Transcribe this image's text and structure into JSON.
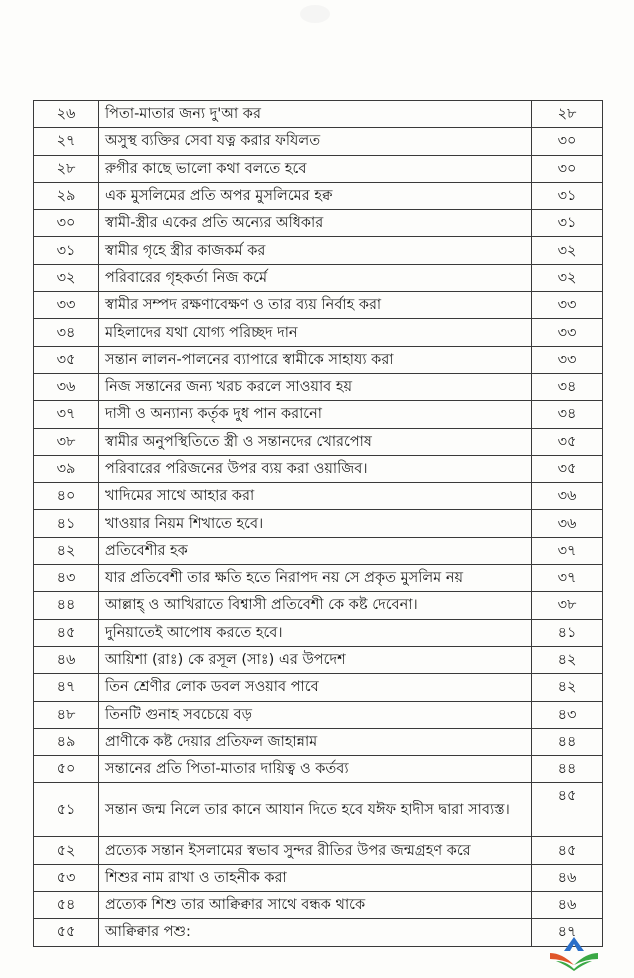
{
  "toc": {
    "rows": [
      {
        "no": "২৬",
        "title": "পিতা-মাতার জন্য দু'আ কর",
        "page": "২৮"
      },
      {
        "no": "২৭",
        "title": "অসুস্থ ব্যক্তির সেবা যত্ন করার ফযিলত",
        "page": "৩০"
      },
      {
        "no": "২৮",
        "title": "রুগীর কাছে ভালো কথা বলতে হবে",
        "page": "৩০"
      },
      {
        "no": "২৯",
        "title": "এক মুসলিমের প্রতি অপর মুসলিমের হক্ব",
        "page": "৩১"
      },
      {
        "no": "৩০",
        "title": "স্বামী-স্ত্রীর একের প্রতি অন্যের অধিকার",
        "page": "৩১"
      },
      {
        "no": "৩১",
        "title": "স্বামীর গৃহে স্ত্রীর কাজকর্ম কর",
        "page": "৩২"
      },
      {
        "no": "৩২",
        "title": "পরিবারের গৃহকর্তা নিজ কর্মে",
        "page": "৩২"
      },
      {
        "no": "৩৩",
        "title": "স্বামীর সম্পদ রক্ষণাবেক্ষণ ও তার ব্যয় নির্বাহ করা",
        "page": "৩৩"
      },
      {
        "no": "৩৪",
        "title": "মহিলাদের যথা যোগ্য পরিচ্ছদ দান",
        "page": "৩৩"
      },
      {
        "no": "৩৫",
        "title": "সন্তান লালন-পালনের ব্যাপারে স্বামীকে সাহায্য করা",
        "page": "৩৩"
      },
      {
        "no": "৩৬",
        "title": "নিজ সন্তানের জন্য খরচ করলে সাওয়াব হয়",
        "page": "৩৪"
      },
      {
        "no": "৩৭",
        "title": "দাসী ও অন্যান্য কর্তৃক দুধ পান করানো",
        "page": "৩৪"
      },
      {
        "no": "৩৮",
        "title": "স্বামীর অনুপস্থিতিতে স্ত্রী ও সন্তানদের খোরপোষ",
        "page": "৩৫"
      },
      {
        "no": "৩৯",
        "title": "পরিবারের পরিজনের উপর ব্যয় করা ওয়াজিব।",
        "page": "৩৫"
      },
      {
        "no": "৪০",
        "title": "খাদিমের সাথে আহার করা",
        "page": "৩৬"
      },
      {
        "no": "৪১",
        "title": "খাওয়ার নিয়ম শিখাতে হবে।",
        "page": "৩৬"
      },
      {
        "no": "৪২",
        "title": "প্রতিবেশীর হক",
        "page": "৩৭"
      },
      {
        "no": "৪৩",
        "title": "যার প্রতিবেশী তার ক্ষতি হতে নিরাপদ নয় সে প্রকৃত মুসলিম নয়",
        "page": "৩৭"
      },
      {
        "no": "৪৪",
        "title": "আল্লাহ্ ও আখিরাতে বিশ্বাসী প্রতিবেশী কে কষ্ট দেবেনা।",
        "page": "৩৮"
      },
      {
        "no": "৪৫",
        "title": "দুনিয়াতেই আপোষ করতে হবে।",
        "page": "৪১"
      },
      {
        "no": "৪৬",
        "title": "আয়িশা (রাঃ) কে রসূল (সাঃ) এর উপদেশ",
        "page": "৪২"
      },
      {
        "no": "৪৭",
        "title": "তিন শ্রেণীর লোক ডবল সওয়াব পাবে",
        "page": "৪২"
      },
      {
        "no": "৪৮",
        "title": "তিনটি গুনাহ সবচেয়ে বড়",
        "page": "৪৩"
      },
      {
        "no": "৪৯",
        "title": "প্রাণীকে কষ্ট দেয়ার প্রতিফল জাহান্নাম",
        "page": "৪৪"
      },
      {
        "no": "৫০",
        "title": "সন্তানের প্রতি পিতা-মাতার দায়িত্ব ও কর্তব্য",
        "page": "৪৪"
      },
      {
        "no": "৫১",
        "title": "সন্তান জন্ম নিলে তার কানে আযান দিতে হবে যঈফ হাদীস দ্বারা সাব্যস্ত।",
        "page": "৪৫"
      },
      {
        "no": "৫২",
        "title": "প্রত্যেক সন্তান ইসলামের স্বভাব সুন্দর রীতির উপর জন্মগ্রহণ করে",
        "page": "৪৫"
      },
      {
        "no": "৫৩",
        "title": "শিশুর নাম রাখা ও তাহনীক করা",
        "page": "৪৬"
      },
      {
        "no": "৫৪",
        "title": "প্রত্যেক শিশু তার আক্বিক্বার সাথে বন্ধক থাকে",
        "page": "৪৬"
      },
      {
        "no": "৫৫",
        "title": "আক্বিক্বার পশু:",
        "page": "৪৭"
      }
    ]
  },
  "logo": {
    "colors": [
      "#2a6fc9",
      "#e0562a",
      "#3aa845"
    ]
  }
}
